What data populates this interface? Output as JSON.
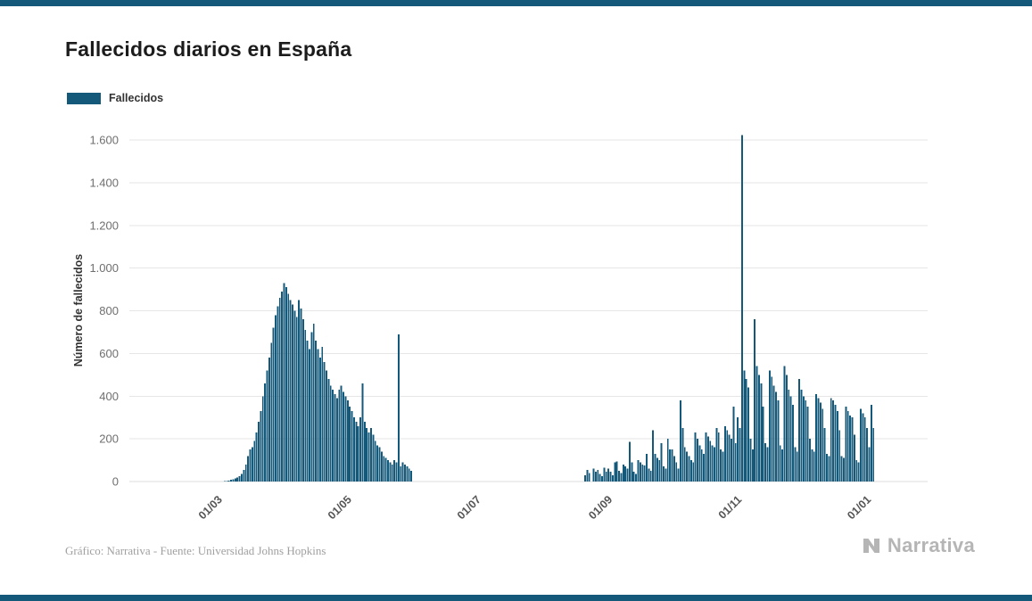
{
  "page": {
    "title": "Fallecidos diarios en España",
    "legend_label": "Fallecidos",
    "y_axis_label": "Número de fallecidos",
    "footer_credit": "Gráfico: Narrativa - Fuente: Universidad Johns Hopkins",
    "brand": "Narrativa"
  },
  "colors": {
    "bar": "#14587a",
    "strip": "#14587a",
    "grid": "#e6e6e6",
    "grid_zero": "#dcdcdc",
    "y_tick_text": "#6f6f6f",
    "x_tick_text": "#555555",
    "title_text": "#1c1c1c",
    "footer_text": "#a0a0a0",
    "brand_text": "#b5b5b5"
  },
  "chart_data": {
    "type": "bar",
    "title": "Fallecidos diarios en España",
    "series_name": "Fallecidos",
    "xlabel": "",
    "ylabel": "Número de fallecidos",
    "ylim": [
      0,
      1600
    ],
    "grid": true,
    "legend_position": "top-left",
    "y_tick_values": [
      0,
      200,
      400,
      600,
      800,
      1000,
      1200,
      1400,
      1600
    ],
    "y_ticks": [
      "0",
      "200",
      "400",
      "600",
      "800",
      "1.000",
      "1.200",
      "1.400",
      "1.600"
    ],
    "x_ticks": [
      {
        "label": "01/03",
        "date": "2020-03-01"
      },
      {
        "label": "01/05",
        "date": "2020-05-01"
      },
      {
        "label": "01/07",
        "date": "2020-07-01"
      },
      {
        "label": "01/09",
        "date": "2020-09-01"
      },
      {
        "label": "01/11",
        "date": "2020-11-01"
      },
      {
        "label": "01/01",
        "date": "2021-01-01"
      }
    ],
    "start_date": "2020-03-01",
    "values": [
      0,
      0,
      1,
      2,
      3,
      5,
      8,
      10,
      14,
      18,
      25,
      35,
      55,
      80,
      120,
      150,
      160,
      190,
      230,
      280,
      330,
      400,
      460,
      520,
      580,
      650,
      720,
      780,
      820,
      860,
      890,
      930,
      910,
      880,
      850,
      830,
      800,
      770,
      850,
      810,
      760,
      710,
      660,
      620,
      700,
      740,
      660,
      620,
      580,
      630,
      560,
      520,
      480,
      450,
      430,
      410,
      390,
      430,
      450,
      420,
      400,
      380,
      350,
      330,
      300,
      280,
      260,
      300,
      460,
      280,
      250,
      230,
      250,
      220,
      190,
      170,
      160,
      140,
      120,
      110,
      100,
      90,
      80,
      100,
      90,
      690,
      70,
      90,
      80,
      70,
      60,
      50,
      0,
      0,
      0,
      0,
      0,
      0,
      0,
      0,
      0,
      0,
      0,
      0,
      0,
      0,
      0,
      0,
      0,
      0,
      0,
      0,
      0,
      0,
      0,
      0,
      0,
      0,
      0,
      0,
      0,
      0,
      0,
      0,
      0,
      0,
      0,
      0,
      0,
      0,
      0,
      0,
      0,
      0,
      0,
      0,
      0,
      0,
      0,
      0,
      0,
      0,
      0,
      0,
      0,
      0,
      0,
      0,
      0,
      0,
      0,
      0,
      0,
      0,
      0,
      0,
      0,
      0,
      0,
      0,
      0,
      0,
      0,
      0,
      0,
      0,
      0,
      0,
      0,
      0,
      0,
      0,
      0,
      30,
      55,
      40,
      0,
      60,
      45,
      55,
      35,
      25,
      65,
      45,
      60,
      45,
      30,
      90,
      95,
      50,
      40,
      80,
      70,
      60,
      185,
      90,
      45,
      35,
      100,
      90,
      80,
      75,
      130,
      60,
      50,
      240,
      130,
      110,
      100,
      180,
      70,
      60,
      200,
      150,
      150,
      120,
      90,
      60,
      380,
      250,
      160,
      140,
      120,
      100,
      90,
      230,
      200,
      170,
      150,
      130,
      230,
      210,
      190,
      170,
      160,
      250,
      230,
      150,
      140,
      260,
      240,
      220,
      200,
      350,
      180,
      300,
      250,
      1623,
      520,
      480,
      440,
      200,
      150,
      760,
      540,
      500,
      460,
      350,
      180,
      160,
      520,
      490,
      450,
      420,
      380,
      170,
      150,
      540,
      500,
      430,
      400,
      360,
      160,
      140,
      480,
      430,
      400,
      380,
      350,
      200,
      150,
      140,
      410,
      390,
      370,
      340,
      250,
      130,
      120,
      390,
      380,
      360,
      330,
      240,
      120,
      110,
      350,
      330,
      310,
      300,
      220,
      100,
      90,
      340,
      320,
      300,
      250,
      160,
      360,
      250
    ]
  }
}
